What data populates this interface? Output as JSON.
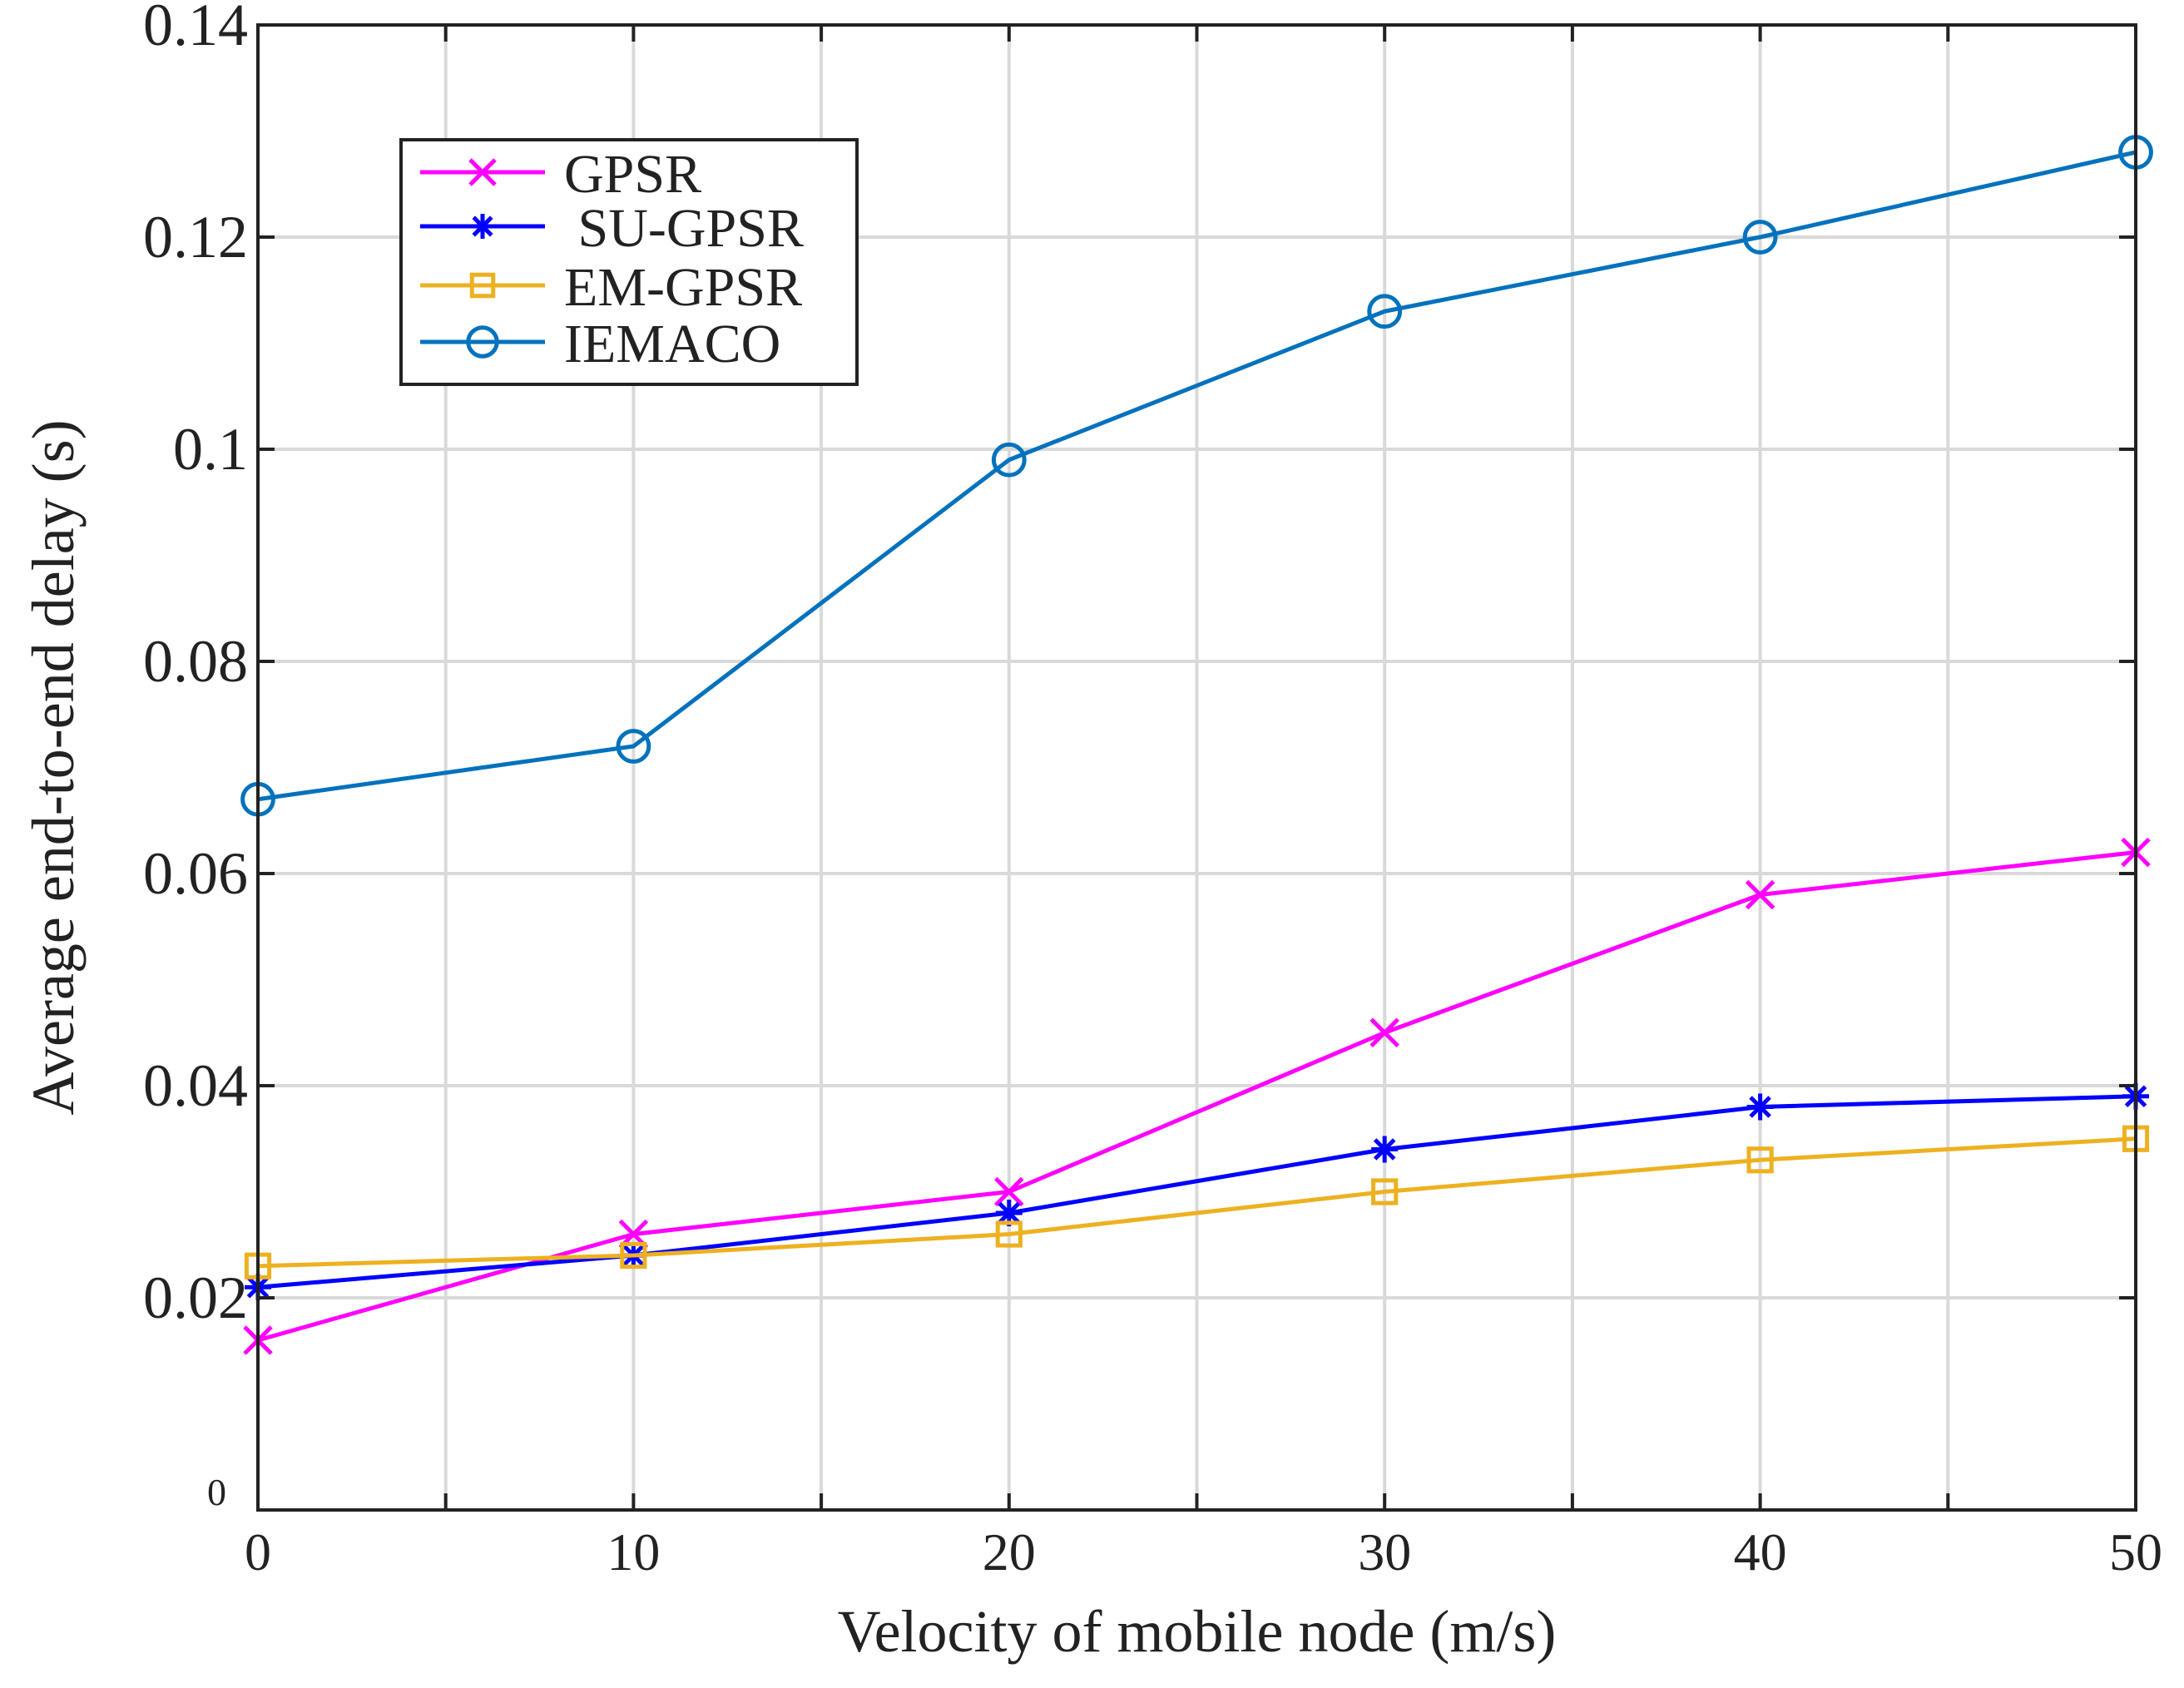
{
  "chart_data": {
    "type": "line",
    "title": "",
    "xlabel": "Velocity of mobile node (m/s)",
    "ylabel": "Average end-to-end delay (s)",
    "xlim": [
      0,
      50
    ],
    "ylim": [
      0,
      0.14
    ],
    "x_ticks": [
      0,
      10,
      20,
      30,
      40,
      50
    ],
    "x_tick_labels": [
      "0",
      "10",
      "20",
      "30",
      "40",
      "50"
    ],
    "y_ticks": [
      0,
      0.02,
      0.04,
      0.06,
      0.08,
      0.1,
      0.12,
      0.14
    ],
    "y_tick_labels": [
      "0",
      "0.02",
      "0.04",
      "0.06",
      "0.08",
      "0.1",
      "0.12",
      "0.14"
    ],
    "grid": true,
    "legend_position": "top-left",
    "x": [
      0,
      10,
      20,
      30,
      40,
      50
    ],
    "series": [
      {
        "name": "GPSR",
        "legend_label": "GPSR",
        "color": "#ff00ff",
        "marker": "x",
        "values": [
          0.016,
          0.026,
          0.03,
          0.045,
          0.058,
          0.062
        ]
      },
      {
        "name": "SU-GPSR",
        "legend_label": " SU-GPSR",
        "color": "#0000ff",
        "marker": "asterisk",
        "values": [
          0.021,
          0.024,
          0.028,
          0.034,
          0.038,
          0.039
        ]
      },
      {
        "name": "EM-GPSR",
        "legend_label": "EM-GPSR",
        "color": "#edb120",
        "marker": "square",
        "values": [
          0.023,
          0.024,
          0.026,
          0.03,
          0.033,
          0.035
        ]
      },
      {
        "name": "IEMACO",
        "legend_label": "IEMACO",
        "color": "#0072bd",
        "marker": "circle",
        "values": [
          0.067,
          0.072,
          0.099,
          0.113,
          0.12,
          0.128
        ]
      }
    ]
  }
}
